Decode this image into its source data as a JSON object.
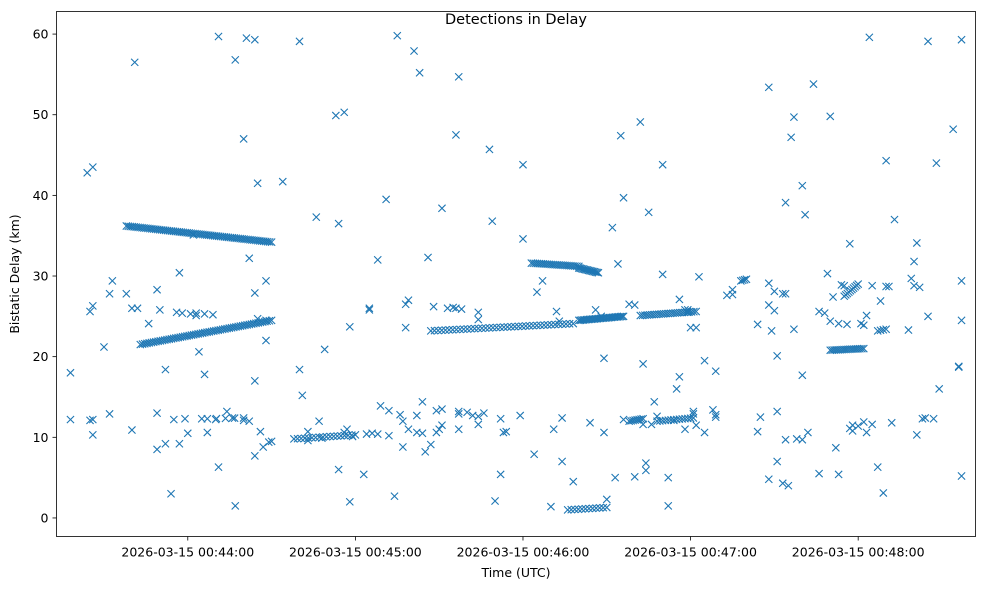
{
  "chart_data": {
    "type": "scatter",
    "title": "Detections in Delay",
    "xlabel": "Time (UTC)",
    "ylabel": "Bistatic Delay (km)",
    "x_ticks": [
      "2026-03-15 00:44:00",
      "2026-03-15 00:45:00",
      "2026-03-15 00:46:00",
      "2026-03-15 00:47:00",
      "2026-03-15 00:48:00"
    ],
    "y_ticks": [
      0,
      10,
      20,
      30,
      40,
      50,
      60
    ],
    "xlim": [
      "2026-03-15 00:43:13",
      "2026-03-15 00:48:42"
    ],
    "ylim": [
      -2.3,
      62.8
    ],
    "marker": "x",
    "color": "#1f77b4",
    "grid": false,
    "legend": "none",
    "tracks": [
      {
        "t0": "00:43:38",
        "y0": 36.2,
        "t1": "00:44:30",
        "y1": 34.2,
        "n": 75
      },
      {
        "t0": "00:43:43",
        "y0": 21.5,
        "t1": "00:44:30",
        "y1": 24.5,
        "n": 60
      },
      {
        "t0": "00:46:03",
        "y0": 31.6,
        "t1": "00:46:20",
        "y1": 31.2,
        "n": 25
      },
      {
        "t0": "00:46:20",
        "y0": 31.0,
        "t1": "00:46:27",
        "y1": 30.4,
        "n": 15
      },
      {
        "t0": "00:45:27",
        "y0": 23.2,
        "t1": "00:46:18",
        "y1": 24.1,
        "n": 40
      },
      {
        "t0": "00:46:20",
        "y0": 24.5,
        "t1": "00:46:36",
        "y1": 25.0,
        "n": 30
      },
      {
        "t0": "00:46:42",
        "y0": 25.1,
        "t1": "00:47:02",
        "y1": 25.6,
        "n": 25
      },
      {
        "t0": "00:47:50",
        "y0": 20.8,
        "t1": "00:48:02",
        "y1": 21.0,
        "n": 18
      },
      {
        "t0": "00:47:55",
        "y0": 27.5,
        "t1": "00:48:00",
        "y1": 29.0,
        "n": 10
      },
      {
        "t0": "00:44:38",
        "y0": 9.8,
        "t1": "00:45:00",
        "y1": 10.3,
        "n": 18
      },
      {
        "t0": "00:46:16",
        "y0": 1.0,
        "t1": "00:46:30",
        "y1": 1.3,
        "n": 12
      },
      {
        "t0": "00:46:38",
        "y0": 12.0,
        "t1": "00:46:43",
        "y1": 12.3,
        "n": 8
      },
      {
        "t0": "00:46:48",
        "y0": 12.0,
        "t1": "00:47:01",
        "y1": 12.4,
        "n": 14
      },
      {
        "t0": "00:44:07",
        "y0": 12.3,
        "t1": "00:44:20",
        "y1": 12.4,
        "n": 5
      },
      {
        "t0": "00:48:07",
        "y0": 23.2,
        "t1": "00:48:10",
        "y1": 23.4,
        "n": 4
      },
      {
        "t0": "00:47:18",
        "y0": 29.4,
        "t1": "00:47:20",
        "y1": 29.6,
        "n": 4
      }
    ],
    "points": [
      [
        "00:43:18",
        18.0
      ],
      [
        "00:43:18",
        12.2
      ],
      [
        "00:43:24",
        42.8
      ],
      [
        "00:43:26",
        43.5
      ],
      [
        "00:43:25",
        12.1
      ],
      [
        "00:43:26",
        12.2
      ],
      [
        "00:43:26",
        10.3
      ],
      [
        "00:43:25",
        25.6
      ],
      [
        "00:43:26",
        26.3
      ],
      [
        "00:43:33",
        29.4
      ],
      [
        "00:43:32",
        27.8
      ],
      [
        "00:43:30",
        21.2
      ],
      [
        "00:43:32",
        12.9
      ],
      [
        "00:43:38",
        27.8
      ],
      [
        "00:43:40",
        10.9
      ],
      [
        "00:43:41",
        56.5
      ],
      [
        "00:43:40",
        26.0
      ],
      [
        "00:43:42",
        26.0
      ],
      [
        "00:43:46",
        24.1
      ],
      [
        "00:43:49",
        28.3
      ],
      [
        "00:43:50",
        25.8
      ],
      [
        "00:43:49",
        13.0
      ],
      [
        "00:43:49",
        8.5
      ],
      [
        "00:43:52",
        9.2
      ],
      [
        "00:43:52",
        18.4
      ],
      [
        "00:43:54",
        3.0
      ],
      [
        "00:43:55",
        12.2
      ],
      [
        "00:43:56",
        25.5
      ],
      [
        "00:43:57",
        9.2
      ],
      [
        "00:43:57",
        30.4
      ],
      [
        "00:43:58",
        25.4
      ],
      [
        "00:43:59",
        12.3
      ],
      [
        "00:44:00",
        10.5
      ],
      [
        "00:44:01",
        25.3
      ],
      [
        "00:44:02",
        35.1
      ],
      [
        "00:44:03",
        25.4
      ],
      [
        "00:44:03",
        25.1
      ],
      [
        "00:44:04",
        20.6
      ],
      [
        "00:44:05",
        12.3
      ],
      [
        "00:44:06",
        25.3
      ],
      [
        "00:44:06",
        17.8
      ],
      [
        "00:44:07",
        10.6
      ],
      [
        "00:44:09",
        25.2
      ],
      [
        "00:44:10",
        12.2
      ],
      [
        "00:44:11",
        6.3
      ],
      [
        "00:44:11",
        59.7
      ],
      [
        "00:44:14",
        13.2
      ],
      [
        "00:44:16",
        12.4
      ],
      [
        "00:44:17",
        56.8
      ],
      [
        "00:44:17",
        1.5
      ],
      [
        "00:44:20",
        47.0
      ],
      [
        "00:44:20",
        12.1
      ],
      [
        "00:44:21",
        59.5
      ],
      [
        "00:44:22",
        12.0
      ],
      [
        "00:44:22",
        32.2
      ],
      [
        "00:44:24",
        59.3
      ],
      [
        "00:44:25",
        41.5
      ],
      [
        "00:44:24",
        27.9
      ],
      [
        "00:44:24",
        17.0
      ],
      [
        "00:44:24",
        7.7
      ],
      [
        "00:44:25",
        24.7
      ],
      [
        "00:44:26",
        10.7
      ],
      [
        "00:44:27",
        8.8
      ],
      [
        "00:44:28",
        29.4
      ],
      [
        "00:44:28",
        24.5
      ],
      [
        "00:44:28",
        22.0
      ],
      [
        "00:44:29",
        9.4
      ],
      [
        "00:44:30",
        9.5
      ],
      [
        "00:44:34",
        41.7
      ],
      [
        "00:44:40",
        59.1
      ],
      [
        "00:44:40",
        18.4
      ],
      [
        "00:44:41",
        15.2
      ],
      [
        "00:44:43",
        10.7
      ],
      [
        "00:44:43",
        9.6
      ],
      [
        "00:44:46",
        37.3
      ],
      [
        "00:44:47",
        12.0
      ],
      [
        "00:44:48",
        9.9
      ],
      [
        "00:44:49",
        20.9
      ],
      [
        "00:44:53",
        49.9
      ],
      [
        "00:44:54",
        36.5
      ],
      [
        "00:44:54",
        6.0
      ],
      [
        "00:44:56",
        50.3
      ],
      [
        "00:44:56",
        10.6
      ],
      [
        "00:44:57",
        11.0
      ],
      [
        "00:44:58",
        23.7
      ],
      [
        "00:44:58",
        2.0
      ],
      [
        "00:44:59",
        10.1
      ],
      [
        "00:45:03",
        5.4
      ],
      [
        "00:45:04",
        10.4
      ],
      [
        "00:45:05",
        26.0
      ],
      [
        "00:45:05",
        25.8
      ],
      [
        "00:45:06",
        10.5
      ],
      [
        "00:45:08",
        10.4
      ],
      [
        "00:45:08",
        32.0
      ],
      [
        "00:45:09",
        13.9
      ],
      [
        "00:45:11",
        39.5
      ],
      [
        "00:45:12",
        13.3
      ],
      [
        "00:45:12",
        10.2
      ],
      [
        "00:45:14",
        2.7
      ],
      [
        "00:45:15",
        59.8
      ],
      [
        "00:45:16",
        12.8
      ],
      [
        "00:45:17",
        8.8
      ],
      [
        "00:45:17",
        12.0
      ],
      [
        "00:45:18",
        26.5
      ],
      [
        "00:45:18",
        23.6
      ],
      [
        "00:45:19",
        27.0
      ],
      [
        "00:45:19",
        11.0
      ],
      [
        "00:45:21",
        57.9
      ],
      [
        "00:45:22",
        12.7
      ],
      [
        "00:45:22",
        10.6
      ],
      [
        "00:45:23",
        55.2
      ],
      [
        "00:45:24",
        10.5
      ],
      [
        "00:45:24",
        14.4
      ],
      [
        "00:45:25",
        8.2
      ],
      [
        "00:45:26",
        32.3
      ],
      [
        "00:45:27",
        9.1
      ],
      [
        "00:45:28",
        26.2
      ],
      [
        "00:45:29",
        13.3
      ],
      [
        "00:45:29",
        10.6
      ],
      [
        "00:45:30",
        11.0
      ],
      [
        "00:45:31",
        13.5
      ],
      [
        "00:45:31",
        38.4
      ],
      [
        "00:45:31",
        11.5
      ],
      [
        "00:45:33",
        26.0
      ],
      [
        "00:45:35",
        26.1
      ],
      [
        "00:45:36",
        26.0
      ],
      [
        "00:45:37",
        12.9
      ],
      [
        "00:45:37",
        11.0
      ],
      [
        "00:45:37",
        54.7
      ],
      [
        "00:45:36",
        47.5
      ],
      [
        "00:45:37",
        13.2
      ],
      [
        "00:45:38",
        25.9
      ],
      [
        "00:45:40",
        13.1
      ],
      [
        "00:45:42",
        12.7
      ],
      [
        "00:45:44",
        11.6
      ],
      [
        "00:45:44",
        12.6
      ],
      [
        "00:45:44",
        24.6
      ],
      [
        "00:45:44",
        25.5
      ],
      [
        "00:45:46",
        13.0
      ],
      [
        "00:45:48",
        45.7
      ],
      [
        "00:45:49",
        36.8
      ],
      [
        "00:45:50",
        2.1
      ],
      [
        "00:45:52",
        5.4
      ],
      [
        "00:45:52",
        12.3
      ],
      [
        "00:45:53",
        10.6
      ],
      [
        "00:45:54",
        10.7
      ],
      [
        "00:45:59",
        12.7
      ],
      [
        "00:46:00",
        34.6
      ],
      [
        "00:46:00",
        43.8
      ],
      [
        "00:46:04",
        7.9
      ],
      [
        "00:46:05",
        28.0
      ],
      [
        "00:46:07",
        29.4
      ],
      [
        "00:46:10",
        1.4
      ],
      [
        "00:46:11",
        11.0
      ],
      [
        "00:46:12",
        25.6
      ],
      [
        "00:46:14",
        12.4
      ],
      [
        "00:46:14",
        7.0
      ],
      [
        "00:46:13",
        24.4
      ],
      [
        "00:46:18",
        4.5
      ],
      [
        "00:46:24",
        11.8
      ],
      [
        "00:46:26",
        25.8
      ],
      [
        "00:46:28",
        25.0
      ],
      [
        "00:46:29",
        19.8
      ],
      [
        "00:46:29",
        10.6
      ],
      [
        "00:46:30",
        2.3
      ],
      [
        "00:46:32",
        36.0
      ],
      [
        "00:46:33",
        5.0
      ],
      [
        "00:46:34",
        31.5
      ],
      [
        "00:46:36",
        12.2
      ],
      [
        "00:46:35",
        47.4
      ],
      [
        "00:46:36",
        39.7
      ],
      [
        "00:46:38",
        26.5
      ],
      [
        "00:46:40",
        5.1
      ],
      [
        "00:46:40",
        26.4
      ],
      [
        "00:46:42",
        49.1
      ],
      [
        "00:46:43",
        11.6
      ],
      [
        "00:46:43",
        19.1
      ],
      [
        "00:46:44",
        5.9
      ],
      [
        "00:46:44",
        6.8
      ],
      [
        "00:46:45",
        37.9
      ],
      [
        "00:46:46",
        11.6
      ],
      [
        "00:46:47",
        14.4
      ],
      [
        "00:46:48",
        12.6
      ],
      [
        "00:46:50",
        30.2
      ],
      [
        "00:46:50",
        43.8
      ],
      [
        "00:46:52",
        1.5
      ],
      [
        "00:46:52",
        5.0
      ],
      [
        "00:46:54",
        12.1
      ],
      [
        "00:46:55",
        16.0
      ],
      [
        "00:46:56",
        17.5
      ],
      [
        "00:46:56",
        27.1
      ],
      [
        "00:46:58",
        25.8
      ],
      [
        "00:46:58",
        11.0
      ],
      [
        "00:46:59",
        25.8
      ],
      [
        "00:46:59",
        25.5
      ],
      [
        "00:47:00",
        23.6
      ],
      [
        "00:47:01",
        12.9
      ],
      [
        "00:47:01",
        13.2
      ],
      [
        "00:47:02",
        11.5
      ],
      [
        "00:47:02",
        23.6
      ],
      [
        "00:47:03",
        29.9
      ],
      [
        "00:47:05",
        10.6
      ],
      [
        "00:47:05",
        19.5
      ],
      [
        "00:47:08",
        13.4
      ],
      [
        "00:47:09",
        12.8
      ],
      [
        "00:47:09",
        18.2
      ],
      [
        "00:47:09",
        12.5
      ],
      [
        "00:47:13",
        27.6
      ],
      [
        "00:47:15",
        27.7
      ],
      [
        "00:47:15",
        28.3
      ],
      [
        "00:47:24",
        24.0
      ],
      [
        "00:47:24",
        10.7
      ],
      [
        "00:47:25",
        12.5
      ],
      [
        "00:47:28",
        26.4
      ],
      [
        "00:47:28",
        53.4
      ],
      [
        "00:47:28",
        29.1
      ],
      [
        "00:47:28",
        4.8
      ],
      [
        "00:47:29",
        23.2
      ],
      [
        "00:47:30",
        28.1
      ],
      [
        "00:47:30",
        25.7
      ],
      [
        "00:47:31",
        13.2
      ],
      [
        "00:47:31",
        20.1
      ],
      [
        "00:47:31",
        7.0
      ],
      [
        "00:47:33",
        4.3
      ],
      [
        "00:47:33",
        27.8
      ],
      [
        "00:47:34",
        27.8
      ],
      [
        "00:47:34",
        39.1
      ],
      [
        "00:47:34",
        9.7
      ],
      [
        "00:47:35",
        4.0
      ],
      [
        "00:47:36",
        47.2
      ],
      [
        "00:47:37",
        49.7
      ],
      [
        "00:47:37",
        23.4
      ],
      [
        "00:47:38",
        9.8
      ],
      [
        "00:47:40",
        9.7
      ],
      [
        "00:47:40",
        41.2
      ],
      [
        "00:47:40",
        17.7
      ],
      [
        "00:47:41",
        37.6
      ],
      [
        "00:47:42",
        10.6
      ],
      [
        "00:47:44",
        53.8
      ],
      [
        "00:47:46",
        25.6
      ],
      [
        "00:47:46",
        5.5
      ],
      [
        "00:47:48",
        25.4
      ],
      [
        "00:47:49",
        30.3
      ],
      [
        "00:47:50",
        49.8
      ],
      [
        "00:47:50",
        24.4
      ],
      [
        "00:47:51",
        27.4
      ],
      [
        "00:47:52",
        8.7
      ],
      [
        "00:47:53",
        5.4
      ],
      [
        "00:47:53",
        24.1
      ],
      [
        "00:47:54",
        28.9
      ],
      [
        "00:47:55",
        28.8
      ],
      [
        "00:47:56",
        24.0
      ],
      [
        "00:47:57",
        34.0
      ],
      [
        "00:47:57",
        11.1
      ],
      [
        "00:47:58",
        11.5
      ],
      [
        "00:47:58",
        10.8
      ],
      [
        "00:48:00",
        11.4
      ],
      [
        "00:48:01",
        24.1
      ],
      [
        "00:48:02",
        11.9
      ],
      [
        "00:48:02",
        23.9
      ],
      [
        "00:48:03",
        25.1
      ],
      [
        "00:48:03",
        10.6
      ],
      [
        "00:48:04",
        59.6
      ],
      [
        "00:48:05",
        11.6
      ],
      [
        "00:48:05",
        28.8
      ],
      [
        "00:48:07",
        6.3
      ],
      [
        "00:48:08",
        26.9
      ],
      [
        "00:48:09",
        3.1
      ],
      [
        "00:48:10",
        28.7
      ],
      [
        "00:48:10",
        44.3
      ],
      [
        "00:48:11",
        28.7
      ],
      [
        "00:48:12",
        11.8
      ],
      [
        "00:48:13",
        37.0
      ],
      [
        "00:48:18",
        23.3
      ],
      [
        "00:48:19",
        29.7
      ],
      [
        "00:48:20",
        31.8
      ],
      [
        "00:48:20",
        28.8
      ],
      [
        "00:48:21",
        10.3
      ],
      [
        "00:48:21",
        34.1
      ],
      [
        "00:48:22",
        28.6
      ],
      [
        "00:48:23",
        12.3
      ],
      [
        "00:48:24",
        12.4
      ],
      [
        "00:48:25",
        59.1
      ],
      [
        "00:48:25",
        25.0
      ],
      [
        "00:48:27",
        12.3
      ],
      [
        "00:48:28",
        44.0
      ],
      [
        "00:48:29",
        16.0
      ],
      [
        "00:48:34",
        48.2
      ],
      [
        "00:48:36",
        18.7
      ],
      [
        "00:48:36",
        18.8
      ],
      [
        "00:48:37",
        5.2
      ],
      [
        "00:48:37",
        59.3
      ],
      [
        "00:48:37",
        29.4
      ],
      [
        "00:48:37",
        24.5
      ]
    ]
  }
}
